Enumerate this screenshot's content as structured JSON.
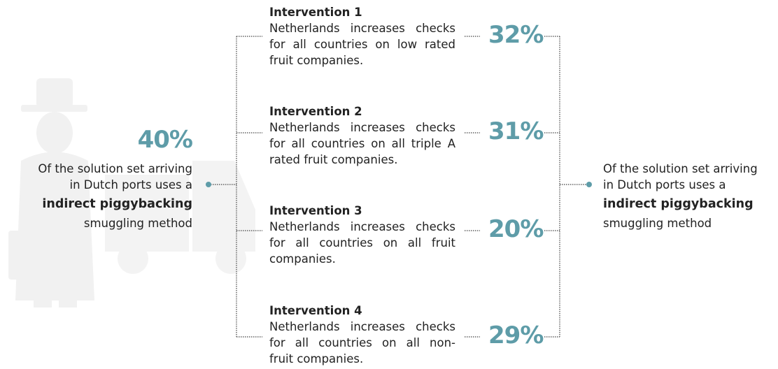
{
  "left": {
    "percent": "40%",
    "lines": [
      "Of the solution set arriving",
      "in Dutch ports uses a",
      "indirect piggybacking",
      "smuggling method"
    ]
  },
  "interventions": [
    {
      "title": "Intervention 1",
      "lines": [
        "Netherlands increases checks",
        "for all countries on low rated",
        "fruit companies."
      ],
      "percent": "32%"
    },
    {
      "title": "Intervention 2",
      "lines": [
        "Netherlands increases checks",
        "for all countries on all triple A",
        "rated fruit companies."
      ],
      "percent": "31%"
    },
    {
      "title": "Intervention 3",
      "lines": [
        "Netherlands increases checks",
        "for all countries on all fruit",
        "companies."
      ],
      "percent": "20%"
    },
    {
      "title": "Intervention 4",
      "lines": [
        "Netherlands increases checks",
        "for all countries on all non-",
        "fruit companies."
      ],
      "percent": "29%"
    }
  ],
  "right": {
    "lines": [
      "Of the solution set arriving",
      "in Dutch ports uses a",
      "indirect piggybacking",
      "smuggling method"
    ]
  }
}
